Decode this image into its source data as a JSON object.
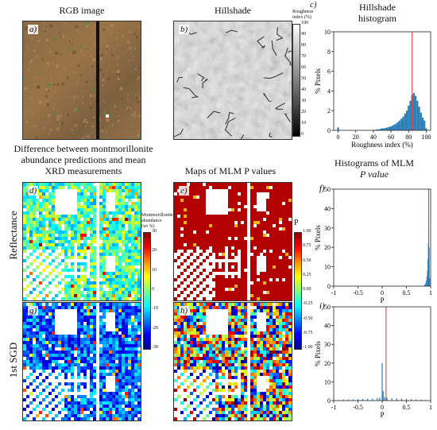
{
  "titles": {
    "rgb": "RGB image",
    "hillshade": "Hillshade",
    "hist_hill_1": "Hillshade",
    "hist_hill_2": "histogram",
    "diff_1": "Difference between montmorillonite",
    "diff_2": "abundance predictions and mean",
    "diff_3": "XRD measurements",
    "maps_mlm": "Maps of MLM P values",
    "hist_mlm_1": "Histograms of MLM",
    "hist_mlm_2": "P value"
  },
  "row_labels": {
    "reflectance": "Reflectance",
    "sgd": "1st SGD"
  },
  "panel_labels": {
    "a": "a)",
    "b": "b)",
    "c": "c)",
    "d": "d)",
    "e": "e)",
    "f": "f)",
    "g": "g)",
    "h": "h)",
    "i": "i)"
  },
  "colorbars": {
    "roughness": {
      "title_1": "Roughness",
      "title_2": "index (%)",
      "ticks": [
        "100",
        "90",
        "80",
        "70",
        "60",
        "50",
        "40",
        "30",
        "20",
        "10",
        "0"
      ]
    },
    "montmorillonite": {
      "title_1": "Montmorillonite",
      "title_2": "abundance",
      "title_3": "(wt %)",
      "ticks": [
        "30",
        "20",
        "10",
        "0",
        "-10",
        "-20",
        "-30"
      ]
    },
    "p_value": {
      "title": "P",
      "ticks": [
        "1.00",
        "0.75",
        "0.50",
        "0.25",
        "0.00",
        "-0.25",
        "-0.50",
        "-0.75",
        "-1.00"
      ]
    }
  },
  "chart_data": [
    {
      "type": "bar",
      "panel": "c",
      "xlabel": "Roughness  index (%)",
      "ylabel": "% Pixels",
      "xlim": [
        -5,
        105
      ],
      "ylim": [
        0,
        10
      ],
      "xticks": [
        "0",
        "20",
        "40",
        "60",
        "80",
        "100"
      ],
      "yticks": [
        "0",
        "2",
        "4",
        "6",
        "8",
        "10"
      ],
      "bar_width": 2,
      "x": [
        0,
        40,
        42,
        44,
        46,
        48,
        50,
        52,
        54,
        56,
        58,
        60,
        62,
        64,
        66,
        68,
        70,
        72,
        74,
        76,
        78,
        80,
        82,
        84,
        86,
        88,
        90,
        92,
        94,
        96,
        98,
        100
      ],
      "values": [
        0.3,
        0.05,
        0.05,
        0.1,
        0.1,
        0.15,
        0.2,
        0.2,
        0.25,
        0.3,
        0.35,
        0.4,
        0.5,
        0.6,
        0.7,
        0.85,
        1.0,
        1.2,
        1.4,
        1.7,
        2.0,
        2.5,
        3.0,
        3.6,
        3.8,
        3.5,
        3.0,
        2.4,
        1.8,
        1.3,
        1.0,
        0.2
      ],
      "vline": 84,
      "colors": {
        "bars": "#2c7fb8",
        "vline": "#e03030"
      }
    },
    {
      "type": "bar",
      "panel": "f",
      "xlabel": "P",
      "ylabel": "% Pixels",
      "xlim": [
        -1,
        1
      ],
      "ylim": [
        0,
        50
      ],
      "xticks": [
        "-1",
        "-0.5",
        "0",
        "0.5",
        "1"
      ],
      "yticks": [
        "0",
        "10",
        "20",
        "30",
        "40",
        "50"
      ],
      "bar_width": 0.01,
      "x": [
        0.85,
        0.86,
        0.87,
        0.88,
        0.89,
        0.9,
        0.91,
        0.92,
        0.93,
        0.94,
        0.95,
        0.96,
        0.97,
        0.98
      ],
      "values": [
        0.2,
        0.3,
        0.5,
        0.8,
        1.2,
        2,
        3,
        5,
        8,
        14,
        22,
        30,
        20,
        4
      ],
      "vline": 0.96,
      "colors": {
        "bars": "#2c7fb8",
        "vline": "#e03030"
      }
    },
    {
      "type": "bar",
      "panel": "i",
      "xlabel": "P",
      "ylabel": "% Pixels",
      "xlim": [
        -1,
        1
      ],
      "ylim": [
        0,
        50
      ],
      "xticks": [
        "-1",
        "-0.5",
        "0",
        "0.5",
        "1"
      ],
      "yticks": [
        "0",
        "10",
        "20",
        "30",
        "40",
        "50"
      ],
      "bar_width": 0.02,
      "x": [
        -0.9,
        -0.8,
        -0.7,
        -0.6,
        -0.5,
        -0.4,
        -0.3,
        -0.2,
        -0.1,
        -0.05,
        0.0,
        0.02,
        0.05,
        0.1,
        0.2,
        0.3,
        0.4,
        0.5,
        0.6,
        0.7,
        0.8,
        0.9
      ],
      "values": [
        0.3,
        0.5,
        0.6,
        0.7,
        0.8,
        0.9,
        1.0,
        1.1,
        1.3,
        1.6,
        20,
        5,
        1.8,
        1.5,
        1.3,
        1.2,
        1.1,
        1.0,
        0.8,
        0.6,
        0.5,
        0.3
      ],
      "vline": 0.08,
      "colors": {
        "bars": "#2c7fb8",
        "vline": "#e03030"
      }
    }
  ]
}
